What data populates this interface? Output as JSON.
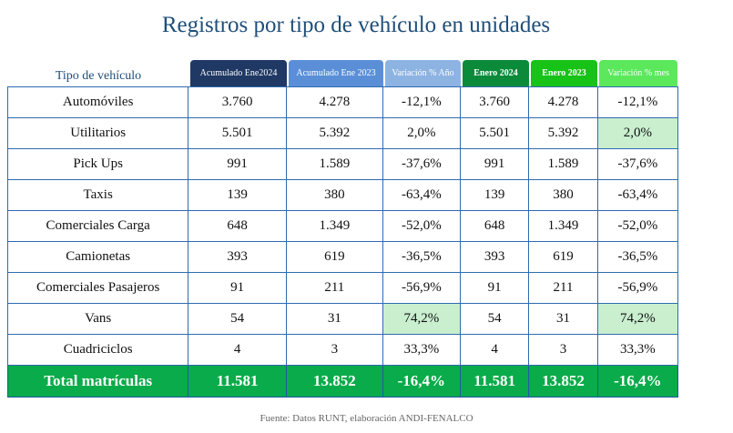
{
  "title": "Registros por tipo de vehículo en unidades",
  "row_header": "Tipo de vehículo",
  "columns": [
    {
      "label": "Acumulado Ene2024",
      "color": "#1f3864"
    },
    {
      "label": "Acumulado Ene 2023",
      "color": "#5a8fd8"
    },
    {
      "label": "Variación % Año",
      "color": "#8db3e2"
    },
    {
      "label": "Enero 2024",
      "color": "#0b8a3a"
    },
    {
      "label": "Enero 2023",
      "color": "#17c317"
    },
    {
      "label": "Variación % mes",
      "color": "#5be85b"
    }
  ],
  "rows": [
    {
      "label": "Automóviles",
      "values": [
        "3.760",
        "4.278",
        "-12,1%",
        "3.760",
        "4.278",
        "-12,1%"
      ],
      "highlight": []
    },
    {
      "label": "Utilitarios",
      "values": [
        "5.501",
        "5.392",
        "2,0%",
        "5.501",
        "5.392",
        "2,0%"
      ],
      "highlight": [
        5
      ]
    },
    {
      "label": "Pick Ups",
      "values": [
        "991",
        "1.589",
        "-37,6%",
        "991",
        "1.589",
        "-37,6%"
      ],
      "highlight": []
    },
    {
      "label": "Taxis",
      "values": [
        "139",
        "380",
        "-63,4%",
        "139",
        "380",
        "-63,4%"
      ],
      "highlight": []
    },
    {
      "label": "Comerciales Carga",
      "values": [
        "648",
        "1.349",
        "-52,0%",
        "648",
        "1.349",
        "-52,0%"
      ],
      "highlight": []
    },
    {
      "label": "Camionetas",
      "values": [
        "393",
        "619",
        "-36,5%",
        "393",
        "619",
        "-36,5%"
      ],
      "highlight": []
    },
    {
      "label": "Comerciales Pasajeros",
      "values": [
        "91",
        "211",
        "-56,9%",
        "91",
        "211",
        "-56,9%"
      ],
      "highlight": []
    },
    {
      "label": "Vans",
      "values": [
        "54",
        "31",
        "74,2%",
        "54",
        "31",
        "74,2%"
      ],
      "highlight": [
        2,
        5
      ]
    },
    {
      "label": "Cuadriciclos",
      "values": [
        "4",
        "3",
        "33,3%",
        "4",
        "3",
        "33,3%"
      ],
      "highlight": []
    }
  ],
  "total": {
    "label": "Total matrículas",
    "values": [
      "11.581",
      "13.852",
      "-16,4%",
      "11.581",
      "13.852",
      "-16,4%"
    ],
    "color": "#0aab4a"
  },
  "source": "Fuente: Datos RUNT, elaboración ANDI-FENALCO"
}
